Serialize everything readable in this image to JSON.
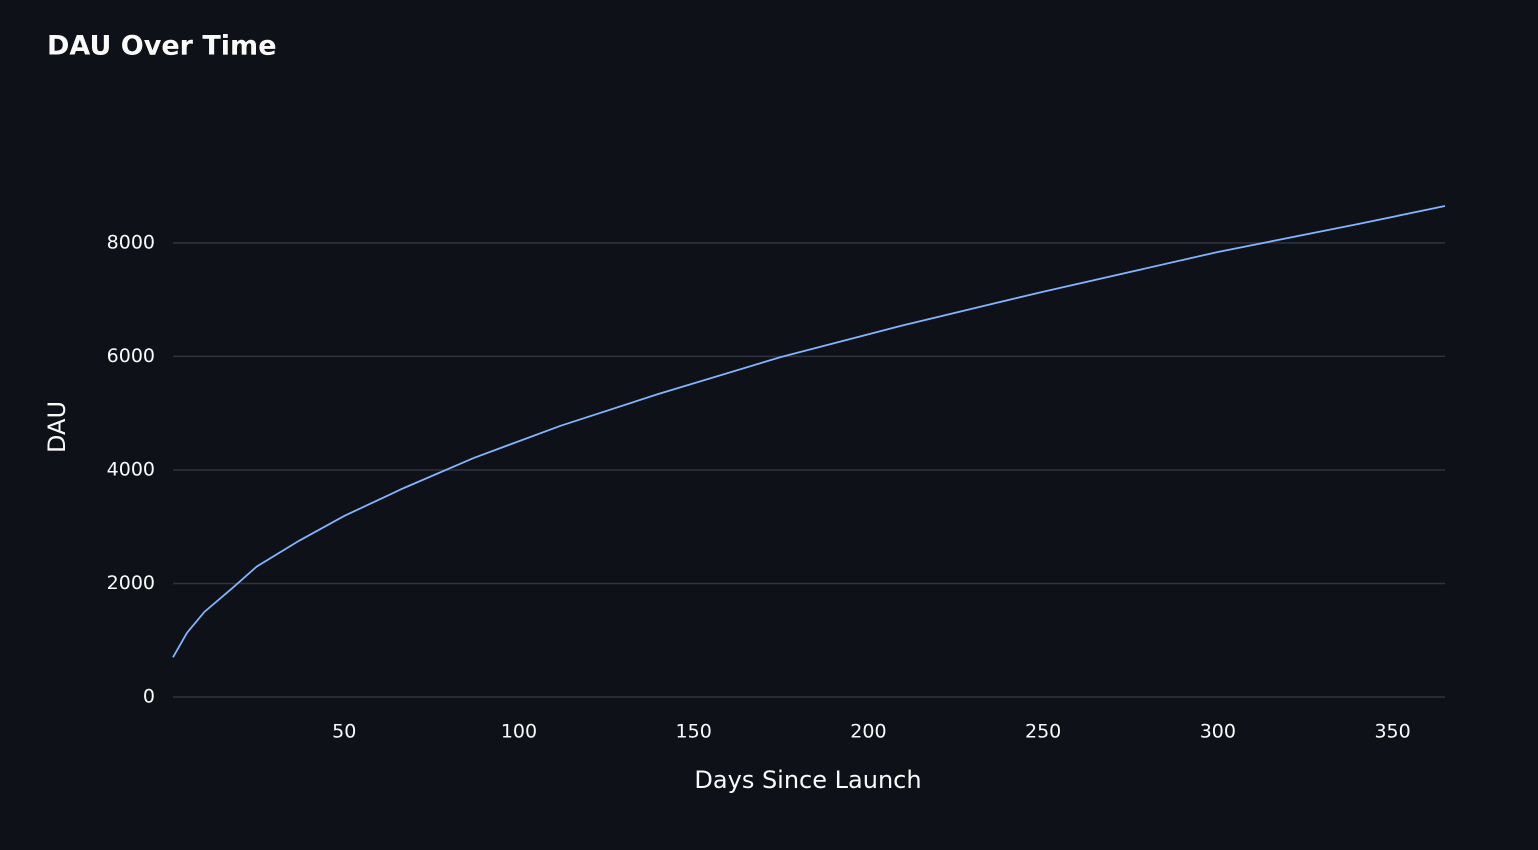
{
  "chart_data": {
    "type": "line",
    "title": "DAU Over Time",
    "x_label": "Days Since Launch",
    "y_label": "DAU",
    "x": [
      1,
      5,
      10,
      18,
      25,
      37,
      50,
      67,
      87,
      112,
      140,
      175,
      210,
      250,
      300,
      340,
      365
    ],
    "series": [
      {
        "name": "DAU",
        "color": "#83b4ff",
        "values": [
          700,
          1130,
          1500,
          1920,
          2300,
          2750,
          3190,
          3680,
          4210,
          4780,
          5340,
          5990,
          6550,
          7140,
          7840,
          8330,
          8650
        ]
      }
    ],
    "xlim": [
      1,
      365
    ],
    "xticks": [
      50,
      100,
      150,
      200,
      250,
      300,
      350
    ],
    "ylim": [
      0,
      8650
    ],
    "yticks": [
      0,
      2000,
      4000,
      6000,
      8000
    ],
    "grid": true
  }
}
